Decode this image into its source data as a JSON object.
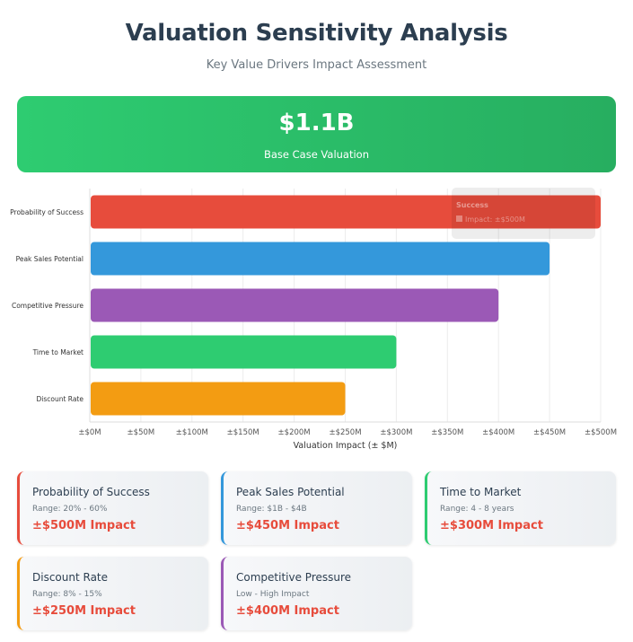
{
  "header": {
    "title": "Valuation Sensitivity Analysis",
    "subtitle": "Key Value Drivers Impact Assessment"
  },
  "hero": {
    "value": "$1.1B",
    "label": "Base Case Valuation"
  },
  "colors": {
    "green": "#2ecc71",
    "red": "#e74c3c",
    "blue": "#3498db",
    "purple": "#9b59b6",
    "orange": "#f39c12",
    "impact_text": "#e74c3c"
  },
  "tooltip": {
    "title": "Success",
    "text": "Impact: ±$500M"
  },
  "chart_data": {
    "type": "bar",
    "orientation": "horizontal",
    "categories": [
      "Probability of Success",
      "Peak Sales Potential",
      "Competitive Pressure",
      "Time to Market",
      "Discount Rate"
    ],
    "values": [
      500,
      450,
      400,
      300,
      250
    ],
    "colors": [
      "#e74c3c",
      "#3498db",
      "#9b59b6",
      "#2ecc71",
      "#f39c12"
    ],
    "xlabel": "Valuation Impact (± $M)",
    "xlim": [
      0,
      500
    ],
    "xticks": [
      "±$0M",
      "±$50M",
      "±$100M",
      "±$150M",
      "±$200M",
      "±$250M",
      "±$300M",
      "±$350M",
      "±$400M",
      "±$450M",
      "±$500M"
    ],
    "grid": true,
    "legend": "none"
  },
  "cards": [
    {
      "title": "Probability of Success",
      "range": "Range: 20% - 60%",
      "impact": "±$500M Impact",
      "color": "#e74c3c"
    },
    {
      "title": "Peak Sales Potential",
      "range": "Range: $1B - $4B",
      "impact": "±$450M Impact",
      "color": "#3498db"
    },
    {
      "title": "Time to Market",
      "range": "Range: 4 - 8 years",
      "impact": "±$300M Impact",
      "color": "#2ecc71"
    },
    {
      "title": "Discount Rate",
      "range": "Range: 8% - 15%",
      "impact": "±$250M Impact",
      "color": "#f39c12"
    },
    {
      "title": "Competitive Pressure",
      "range": "Low - High Impact",
      "impact": "±$400M Impact",
      "color": "#9b59b6"
    }
  ]
}
